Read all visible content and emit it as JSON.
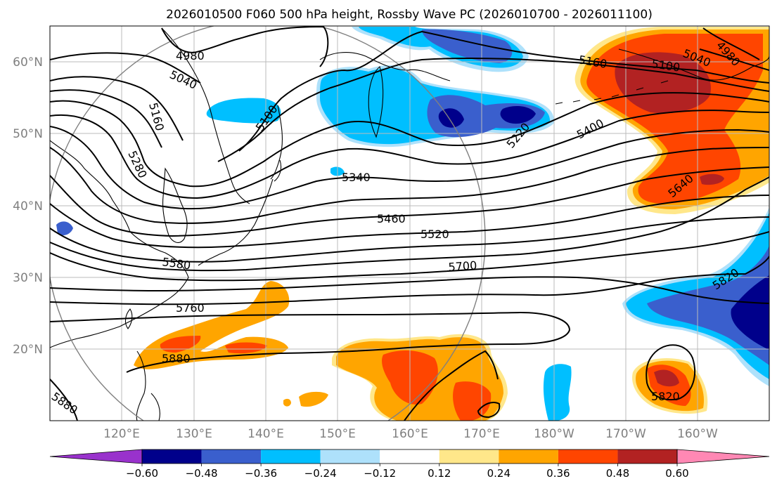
{
  "title": "2026010500 F060 500 hPa height, Rossby Wave PC (2026010700 - 2026011100)",
  "map": {
    "lon_range": [
      110,
      210
    ],
    "lat_range": [
      10,
      65
    ],
    "lat_ticks": [
      {
        "value": 20,
        "label": "20°N"
      },
      {
        "value": 30,
        "label": "30°N"
      },
      {
        "value": 40,
        "label": "40°N"
      },
      {
        "value": 50,
        "label": "50°N"
      },
      {
        "value": 60,
        "label": "60°N"
      }
    ],
    "lon_ticks": [
      {
        "value": 120,
        "label": "120°E"
      },
      {
        "value": 130,
        "label": "130°E"
      },
      {
        "value": 140,
        "label": "140°E"
      },
      {
        "value": 150,
        "label": "150°E"
      },
      {
        "value": 160,
        "label": "160°E"
      },
      {
        "value": 170,
        "label": "170°E"
      },
      {
        "value": 180,
        "label": "180°W"
      },
      {
        "value": 190,
        "label": "170°W"
      },
      {
        "value": 200,
        "label": "160°W"
      }
    ],
    "grid": true,
    "circle": {
      "center_lon": 140,
      "center_lat": 35
    }
  },
  "contours": [
    {
      "level": 4980,
      "label": "4980"
    },
    {
      "level": 5040,
      "label": "5040"
    },
    {
      "level": 5100,
      "label": "5100"
    },
    {
      "level": 5160,
      "label": "5160"
    },
    {
      "level": 5220,
      "label": "5220"
    },
    {
      "level": 5280,
      "label": "5280"
    },
    {
      "level": 5340,
      "label": "5340"
    },
    {
      "level": 5400,
      "label": "5400"
    },
    {
      "level": 5460,
      "label": "5460"
    },
    {
      "level": 5520,
      "label": "5520"
    },
    {
      "level": 5580,
      "label": "5580"
    },
    {
      "level": 5640,
      "label": "5640"
    },
    {
      "level": 5700,
      "label": "5700"
    },
    {
      "level": 5760,
      "label": "5760"
    },
    {
      "level": 5820,
      "label": "5820"
    },
    {
      "level": 5880,
      "label": "5880"
    }
  ],
  "colorbar": {
    "extend": "both",
    "colors": [
      "#9932cc",
      "#00008b",
      "#3a5fcd",
      "#00bfff",
      "#aee1fb",
      "#ffffff",
      "#ffe78a",
      "#ffa500",
      "#ff4500",
      "#b22222",
      "#ff88b4"
    ],
    "boundaries": [
      -0.6,
      -0.48,
      -0.36,
      -0.24,
      -0.12,
      0.12,
      0.24,
      0.36,
      0.48,
      0.6
    ],
    "labels": [
      "−0.60",
      "−0.48",
      "−0.36",
      "−0.24",
      "−0.12",
      "0.12",
      "0.24",
      "0.36",
      "0.48",
      "0.60"
    ]
  }
}
